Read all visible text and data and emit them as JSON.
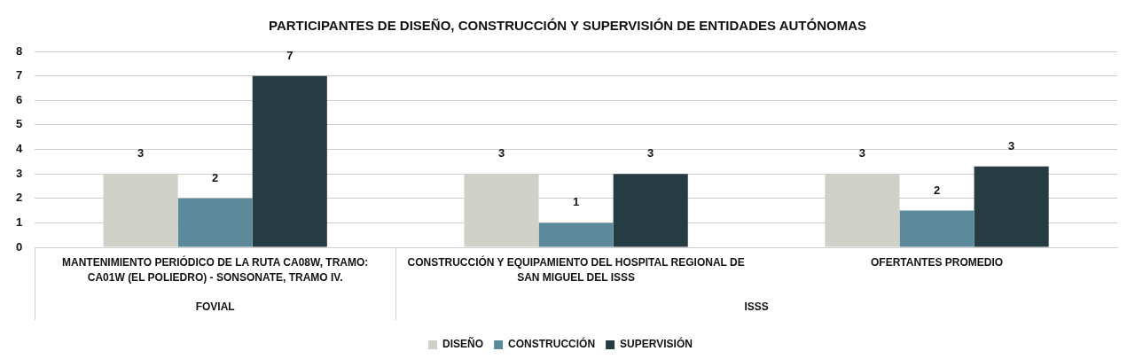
{
  "chart_data": {
    "type": "bar",
    "title": "PARTICIPANTES DE DISEÑO, CONSTRUCCIÓN Y SUPERVISIÓN DE ENTIDADES AUTÓNOMAS",
    "categories": [
      "MANTENIMIENTO PERIÓDICO DE LA RUTA CA08W, TRAMO: CA01W (EL POLIEDRO) - SONSONATE, TRAMO IV.",
      "CONSTRUCCIÓN Y EQUIPAMIENTO DEL HOSPITAL REGIONAL DE SAN MIGUEL DEL ISSS",
      "OFERTANTES PROMEDIO"
    ],
    "series": [
      {
        "name": "DISEÑO",
        "color": "#cfd0c8",
        "values": [
          3,
          3,
          3
        ],
        "value_labels": [
          "3",
          "3",
          "3"
        ]
      },
      {
        "name": "CONSTRUCCIÓN",
        "color": "#5d8a9b",
        "values": [
          2,
          1,
          1.5
        ],
        "value_labels": [
          "2",
          "1",
          "2"
        ]
      },
      {
        "name": "SUPERVISIÓN",
        "color": "#253d42",
        "values": [
          7,
          3,
          3.3
        ],
        "value_labels": [
          "7",
          "3",
          "3"
        ]
      }
    ],
    "annotations": [
      "FOVIAL",
      "ISSS"
    ],
    "ylim": [
      0,
      8
    ],
    "yticks": [
      0,
      1,
      2,
      3,
      4,
      5,
      6,
      7,
      8
    ],
    "grid": "y",
    "legend": "bottom"
  }
}
